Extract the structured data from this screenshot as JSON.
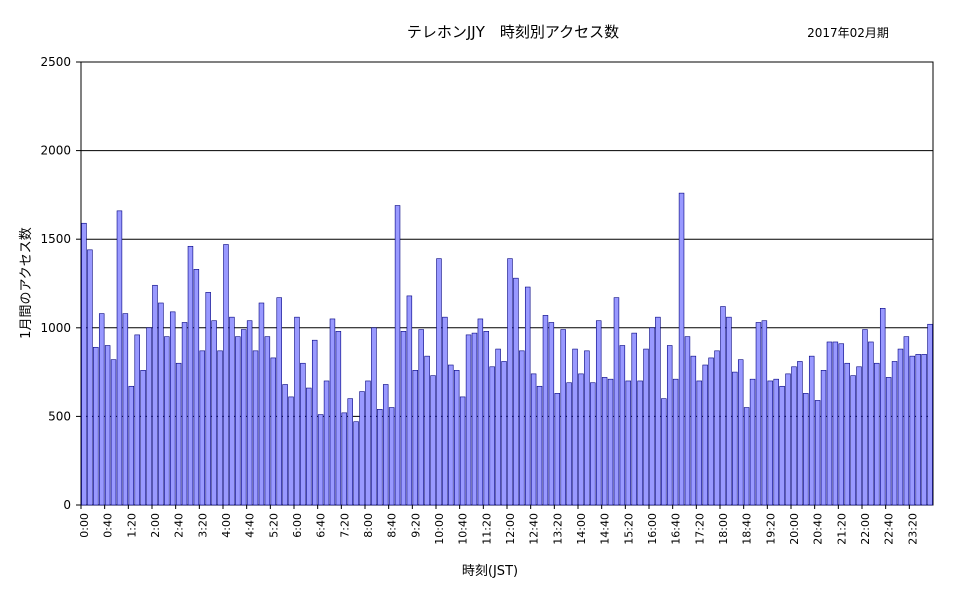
{
  "chart_data": {
    "type": "bar",
    "title": "テレホンJJY　時刻別アクセス数",
    "subtitle": "2017年02月期",
    "xlabel": "時刻(JST)",
    "ylabel": "1月間のアクセス数",
    "ylim": [
      0,
      2500
    ],
    "yticks": [
      0,
      500,
      1000,
      1500,
      2000,
      2500
    ],
    "grid": true,
    "bar_color": "#9999ff",
    "bar_edge_color": "#000080",
    "x_tick_labels": [
      "0:00",
      "0:40",
      "1:20",
      "2:00",
      "2:40",
      "3:20",
      "4:00",
      "4:40",
      "5:20",
      "6:00",
      "6:40",
      "7:20",
      "8:00",
      "8:40",
      "9:20",
      "10:00",
      "10:40",
      "11:20",
      "12:00",
      "12:40",
      "13:20",
      "14:00",
      "14:40",
      "15:20",
      "16:00",
      "16:40",
      "17:20",
      "18:00",
      "18:40",
      "19:20",
      "20:00",
      "20:40",
      "21:20",
      "22:00",
      "22:40",
      "23:20"
    ],
    "interval_minutes": 10,
    "values": [
      1590,
      1440,
      890,
      1080,
      900,
      820,
      1660,
      1080,
      670,
      960,
      760,
      1000,
      1240,
      1140,
      950,
      1090,
      800,
      1030,
      1460,
      1330,
      870,
      1200,
      1040,
      870,
      1470,
      1060,
      950,
      990,
      1040,
      870,
      1140,
      950,
      830,
      1170,
      680,
      610,
      1060,
      800,
      660,
      930,
      510,
      700,
      1050,
      980,
      520,
      600,
      470,
      640,
      700,
      1000,
      540,
      680,
      550,
      1690,
      980,
      1180,
      760,
      990,
      840,
      730,
      1390,
      1060,
      790,
      760,
      610,
      960,
      970,
      1050,
      980,
      780,
      880,
      810,
      1390,
      1280,
      870,
      1230,
      740,
      670,
      1070,
      1030,
      630,
      990,
      690,
      880,
      740,
      870,
      690,
      1040,
      720,
      710,
      1170,
      900,
      700,
      970,
      700,
      880,
      1000,
      1060,
      600,
      900,
      710,
      1760,
      950,
      840,
      700,
      790,
      830,
      870,
      1120,
      1060,
      750,
      820,
      550,
      710,
      1030,
      1040,
      700,
      710,
      670,
      740,
      780,
      810,
      630,
      840,
      590,
      760,
      920,
      920,
      910,
      800,
      730,
      780,
      990,
      920,
      800,
      1110,
      720,
      810,
      880,
      950,
      840,
      850,
      850,
      1020
    ]
  }
}
